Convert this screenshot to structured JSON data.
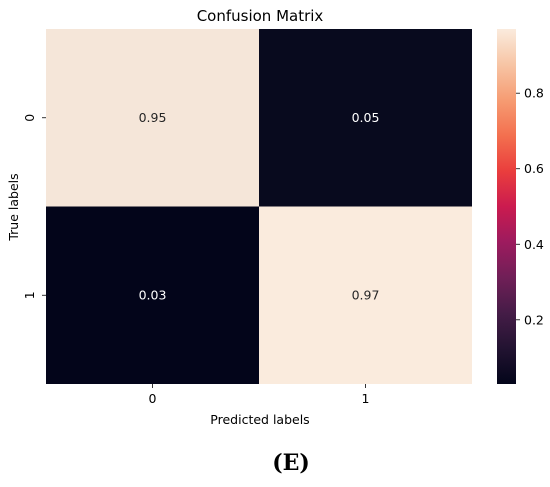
{
  "chart_data": {
    "type": "heatmap",
    "title": "Confusion Matrix",
    "xlabel": "Predicted labels",
    "ylabel": "True labels",
    "x_categories": [
      "0",
      "1"
    ],
    "y_categories": [
      "0",
      "1"
    ],
    "matrix": [
      [
        0.95,
        0.05
      ],
      [
        0.03,
        0.97
      ]
    ],
    "cell_labels": [
      [
        "0.95",
        "0.05"
      ],
      [
        "0.03",
        "0.97"
      ]
    ],
    "colormap": "rocket",
    "colorbar": {
      "vmin": 0.03,
      "vmax": 0.97,
      "ticks": [
        0.2,
        0.4,
        0.6,
        0.8
      ],
      "tick_labels": [
        "0.2",
        "0.4",
        "0.6",
        "0.8"
      ]
    },
    "colors": {
      "low": "#03051a",
      "high": "#faebdd"
    }
  },
  "caption": "(E)"
}
